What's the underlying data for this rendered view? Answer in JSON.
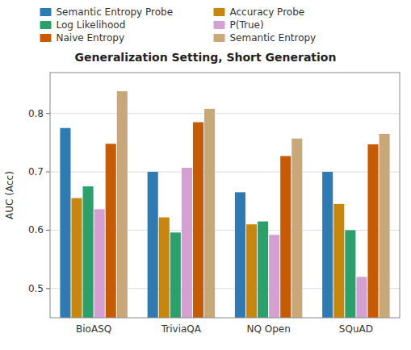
{
  "chart_data": {
    "type": "bar",
    "title": "Generalization Setting, Short Generation",
    "ylabel": "AUC (Acc)",
    "categories": [
      "BioASQ",
      "TriviaQA",
      "NQ Open",
      "SQuAD"
    ],
    "series": [
      {
        "name": "Semantic Entropy Probe",
        "color": "#2e7bb4",
        "values": [
          0.775,
          0.7,
          0.665,
          0.7
        ]
      },
      {
        "name": "Accuracy Probe",
        "color": "#c8870a",
        "values": [
          0.655,
          0.622,
          0.61,
          0.645
        ]
      },
      {
        "name": "Log Likelihood",
        "color": "#2aa06a",
        "values": [
          0.675,
          0.596,
          0.615,
          0.6
        ]
      },
      {
        "name": "P(True)",
        "color": "#d4a0d4",
        "values": [
          0.636,
          0.707,
          0.592,
          0.52
        ]
      },
      {
        "name": "Naive Entropy",
        "color": "#c85a00",
        "values": [
          0.748,
          0.785,
          0.727,
          0.747
        ]
      },
      {
        "name": "Semantic Entropy",
        "color": "#c8a878",
        "values": [
          0.838,
          0.808,
          0.757,
          0.765
        ]
      }
    ],
    "ylim": [
      0.45,
      0.87
    ],
    "yticks": [
      0.5,
      0.6,
      0.7,
      0.8
    ],
    "grid": true,
    "legend": "top"
  }
}
